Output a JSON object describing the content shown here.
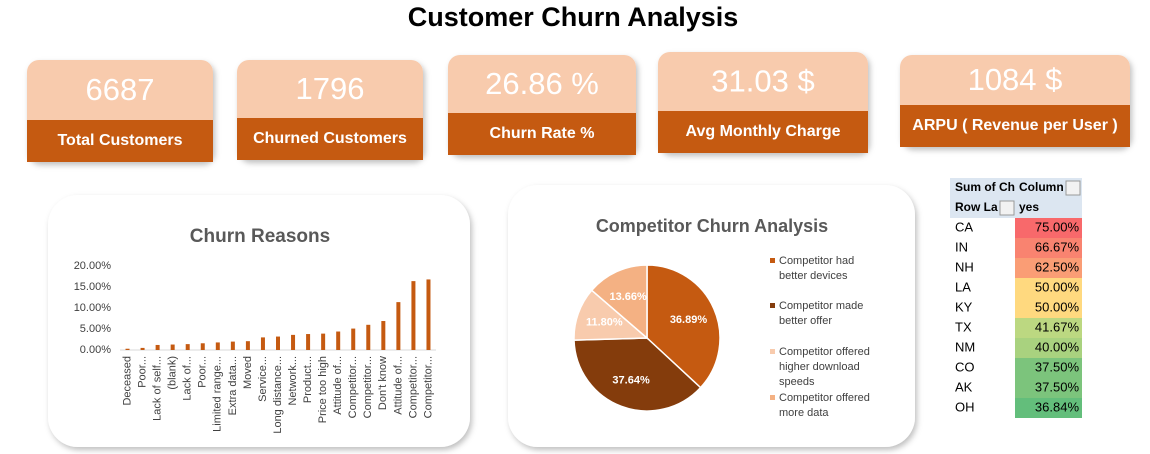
{
  "title": "Customer Churn Analysis",
  "kpis": [
    {
      "value": "6687",
      "label": "Total Customers"
    },
    {
      "value": "1796",
      "label": "Churned Customers"
    },
    {
      "value": "26.86 %",
      "label": "Churn Rate %"
    },
    {
      "value": "31.03 $",
      "label": "Avg Monthly Charge"
    },
    {
      "value": "1084 $",
      "label": "ARPU ( Revenue per User )"
    }
  ],
  "chart_data": [
    {
      "type": "bar",
      "title": "Churn Reasons",
      "color": "#c55a11",
      "categories": [
        "Deceased",
        "Poor...",
        "Lack of self...",
        "(blank)",
        "Lack of...",
        "Poor...",
        "Limited range...",
        "Extra data...",
        "Moved",
        "Service...",
        "Long distance...",
        "Network...",
        "Product...",
        "Price too high",
        "Attitude of...",
        "Competitor...",
        "Competitor...",
        "Don't know",
        "Attitude of...",
        "Competitor...",
        "Competitor..."
      ],
      "values": [
        0.3,
        0.5,
        1.2,
        1.3,
        1.4,
        1.6,
        1.8,
        2.0,
        2.1,
        3.0,
        3.2,
        3.6,
        3.8,
        3.9,
        4.4,
        5.1,
        6.0,
        6.9,
        11.4,
        16.4,
        16.8
      ],
      "ylim": [
        0,
        20
      ],
      "yticks": [
        {
          "value": 0,
          "label": "0.00%"
        },
        {
          "value": 5,
          "label": "5.00%"
        },
        {
          "value": 10,
          "label": "10.00%"
        },
        {
          "value": 15,
          "label": "15.00%"
        },
        {
          "value": 20,
          "label": "20.00%"
        }
      ]
    },
    {
      "type": "pie",
      "title": "Competitor Churn Analysis",
      "categories": [
        "Competitor had better devices",
        "Competitor made better offer",
        "Competitor offered higher download speeds",
        "Competitor offered more data"
      ],
      "values": [
        36.89,
        37.64,
        11.8,
        13.66
      ],
      "value_labels": [
        "36.89%",
        "37.64%",
        "11.80%",
        "13.66%"
      ],
      "colors": [
        "#c55a11",
        "#843c0c",
        "#f8cbad",
        "#f4b183"
      ]
    }
  ],
  "table": {
    "header": [
      [
        "Sum of Ch",
        "Column"
      ],
      [
        "Row La",
        "yes"
      ]
    ],
    "rows": [
      [
        "CA",
        "75.00%"
      ],
      [
        "IN",
        "66.67%"
      ],
      [
        "NH",
        "62.50%"
      ],
      [
        "LA",
        "50.00%"
      ],
      [
        "KY",
        "50.00%"
      ],
      [
        "TX",
        "41.67%"
      ],
      [
        "NM",
        "40.00%"
      ],
      [
        "CO",
        "37.50%"
      ],
      [
        "AK",
        "37.50%"
      ],
      [
        "OH",
        "36.84%"
      ]
    ],
    "colors": [
      "#f8696b",
      "#f98370",
      "#fa9d75",
      "#ffd97f",
      "#ffd97f",
      "#bcd881",
      "#a9d27f",
      "#7cc47c",
      "#7cc47c",
      "#63be7b"
    ]
  }
}
